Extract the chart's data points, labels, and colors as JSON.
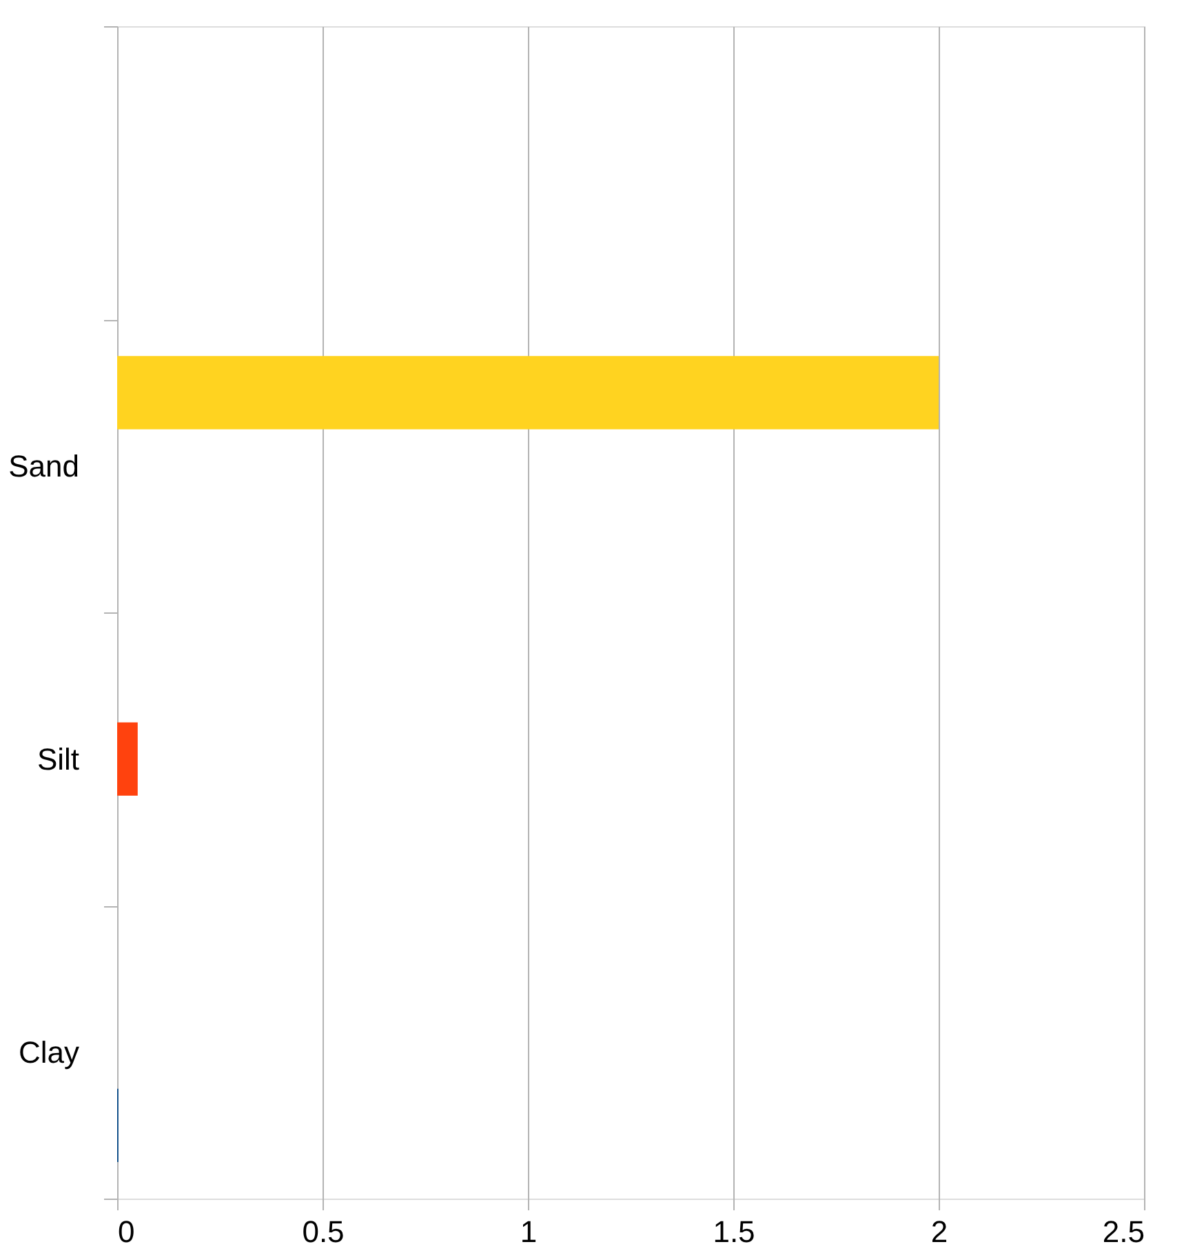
{
  "chart_data": {
    "type": "bar",
    "orientation": "horizontal",
    "categories": [
      null,
      "Sand",
      "Silt",
      "Clay"
    ],
    "series": [
      {
        "color": "#ffd320",
        "values": [
          null,
          2.0,
          null,
          null
        ]
      },
      {
        "color": "#ff420e",
        "values": [
          null,
          null,
          0.05,
          null
        ]
      },
      {
        "color": "#004586",
        "values": [
          null,
          null,
          null,
          0.003
        ]
      }
    ],
    "xlim": [
      0,
      2.5
    ],
    "xticks": [
      0,
      0.5,
      1,
      1.5,
      2,
      2.5
    ],
    "grid": "x",
    "legend": false
  }
}
